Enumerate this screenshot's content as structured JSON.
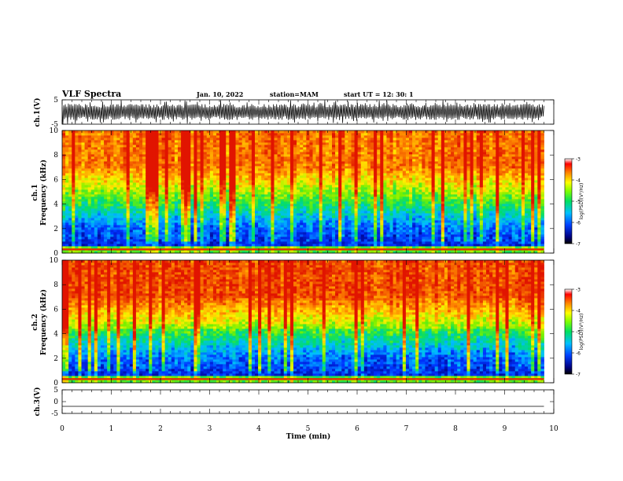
{
  "header": {
    "title": "VLF Spectra",
    "date": "Jan. 10, 2022",
    "station": "station=MAM",
    "start_time": "start UT =   12: 30: 1"
  },
  "colors": {
    "spectrum_low": "#00008f",
    "spectrum_mid": "#00e000",
    "spectrum_high": "#e01000"
  },
  "chart_data": [
    {
      "type": "line",
      "panel": "ch1-waveform",
      "ylabel": "ch.1(V)",
      "ylim": [
        -5,
        5
      ],
      "y_ticks": [
        "5",
        "-5"
      ],
      "xlim": [
        0,
        10
      ],
      "amplitude_typical_V": 3,
      "data_extent_min": 9.8
    },
    {
      "type": "heatmap",
      "panel": "ch1-spectrogram",
      "ylabel_line1": "ch.1",
      "ylabel_line2": "Frequency (kHz)",
      "ylim": [
        0,
        10
      ],
      "y_ticks": [
        "0",
        "2",
        "4",
        "6",
        "8",
        "10"
      ],
      "xlim": [
        0,
        10
      ],
      "data_extent_min": 9.8,
      "colorbar": {
        "label": "log(PSD)(V²/Hz)",
        "range": [
          -7,
          -3
        ],
        "ticks": [
          "-3",
          "-4",
          "-5",
          "-6",
          "-7"
        ]
      }
    },
    {
      "type": "heatmap",
      "panel": "ch2-spectrogram",
      "ylabel_line1": "ch.2",
      "ylabel_line2": "Frequency (kHz)",
      "ylim": [
        0,
        10
      ],
      "y_ticks": [
        "0",
        "2",
        "4",
        "6",
        "8",
        "10"
      ],
      "xlim": [
        0,
        10
      ],
      "data_extent_min": 9.8,
      "colorbar": {
        "label": "log(PSD)(V²/Hz)",
        "range": [
          -7,
          -3
        ],
        "ticks": [
          "-3",
          "-4",
          "-5",
          "-6",
          "-7"
        ]
      }
    },
    {
      "type": "line",
      "panel": "ch3-waveform",
      "ylabel": "ch.3(V)",
      "ylim": [
        -5,
        5
      ],
      "y_ticks": [
        "5",
        "0",
        "-5"
      ],
      "xlim": [
        0,
        10
      ],
      "value_V": -2,
      "data_extent_min": 9.8
    }
  ],
  "x_axis": {
    "label": "Time (min)",
    "ticks": [
      "0",
      "1",
      "2",
      "3",
      "4",
      "5",
      "6",
      "7",
      "8",
      "9",
      "10"
    ]
  }
}
